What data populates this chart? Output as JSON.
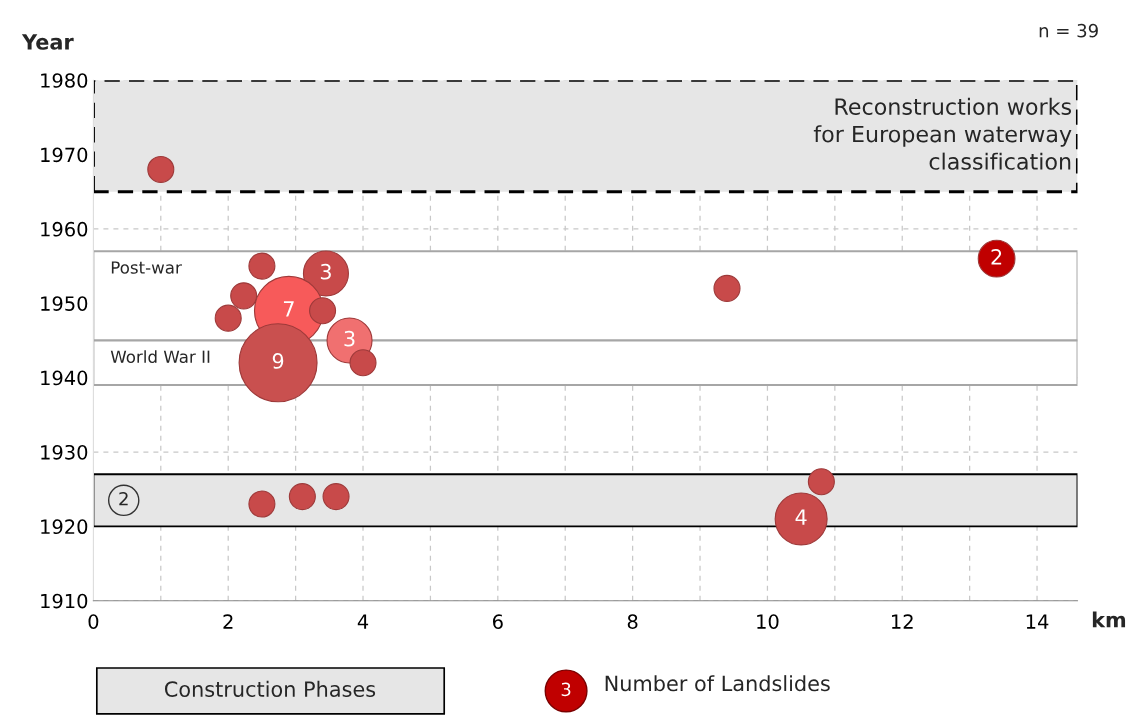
{
  "chart_data": {
    "type": "bubble",
    "xlabel": "km",
    "ylabel": "Year",
    "xlim": [
      0,
      14.6
    ],
    "ylim": [
      1910,
      1980
    ],
    "xticks": [
      0,
      {
        "value": 1,
        "label": null
      },
      2,
      {
        "value": 3,
        "label": null
      },
      4,
      {
        "value": 5,
        "label": null
      },
      6,
      {
        "value": 7,
        "label": null
      },
      8,
      {
        "value": 9,
        "label": null
      },
      10,
      {
        "value": 11,
        "label": null
      },
      12,
      {
        "value": 13,
        "label": null
      },
      14
    ],
    "yticks": [
      1910,
      1920,
      1930,
      1940,
      1950,
      1960,
      1970,
      1980
    ],
    "grid": true,
    "legend": "bottom",
    "series": [
      {
        "name": "Number of Landslides",
        "color": "#c00000",
        "x": [
          1.0,
          2.5,
          3.45,
          2.23,
          2.9,
          2.0,
          3.4,
          3.8,
          2.74,
          4.0,
          9.4,
          13.4,
          2.5,
          3.1,
          3.6,
          10.8,
          10.5
        ],
        "values": [
          1968,
          1955,
          1954,
          1951,
          1949,
          1948,
          1949,
          1945,
          1942,
          1942,
          1952,
          1956,
          1923,
          1924,
          1924,
          1926,
          1921
        ],
        "sizes": [
          0.111,
          0.111,
          0.333,
          0.111,
          0.778,
          0.111,
          0.111,
          0.333,
          1,
          0.111,
          0.111,
          0.222,
          0.111,
          0.111,
          0.111,
          0.111,
          0.444
        ],
        "colors": [
          "#c84a4a",
          "#c84a4a",
          "#c84a4a",
          "#c84a4a",
          "#f75a5a",
          "#c84a4a",
          "#c84a4a",
          "#f07070",
          "#c9504f",
          "#c84a4a",
          "#c84a4a",
          "#c00000",
          "#c84a4a",
          "#c84a4a",
          "#c84a4a",
          "#c84a4a",
          "#c84a4a"
        ]
      }
    ],
    "bands": [
      {
        "axis": "y",
        "from": 1965,
        "to": 1980,
        "label": "Reconstruction works\nfor European waterway\nclassification",
        "color": "#e6e6e6"
      },
      {
        "axis": "y",
        "from": 1945,
        "to": 1957,
        "label": "Post-war",
        "color": "#ffffff"
      },
      {
        "axis": "y",
        "from": 1939,
        "to": 1945,
        "label": "World War II",
        "color": "#ffffff"
      },
      {
        "axis": "y",
        "from": 1920,
        "to": 1927,
        "label": "2",
        "color": "#e6e6e6"
      }
    ],
    "annotations": [
      "n = 39",
      "Construction Phases",
      "3",
      {
        "text": "3",
        "x": 3.45,
        "y": 1954
      },
      {
        "text": "7",
        "x": 2.9,
        "y": 1949
      },
      {
        "text": "3",
        "x": 3.8,
        "y": 1945
      },
      {
        "text": "9",
        "x": 2.74,
        "y": 1942
      },
      {
        "text": "2",
        "x": 13.4,
        "y": 1956
      },
      {
        "text": "4",
        "x": 10.5,
        "y": 1921
      }
    ]
  }
}
